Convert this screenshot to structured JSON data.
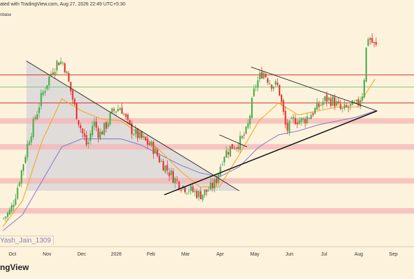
{
  "header": {
    "published": "ated with TradingView.com, Aug 27, 2026 22:49 UTC+5:30",
    "subtitle": "nbase"
  },
  "watermark": {
    "author": "Yash_Jain_1309",
    "logo": "ngView"
  },
  "colors": {
    "background": "#fdf3dc",
    "bull": "#4caf50",
    "bear": "#e53935",
    "ema_fast": "#f5a623",
    "ema_slow": "#8a7fd0",
    "support_zone": "#f4b6b6",
    "resistance_line": "#d32f2f",
    "green_line": "#7cc57c",
    "trendline": "#111111",
    "triangle_fill": "#c8c8d8"
  },
  "chart_data": {
    "type": "candlestick",
    "x_ticks": [
      "Oct",
      "Nov",
      "Dec",
      "2026",
      "Feb",
      "Mar",
      "Apr",
      "May",
      "Jun",
      "Jul",
      "Aug",
      "Sep"
    ],
    "close_path": [
      [
        0,
        0.06
      ],
      [
        0.02,
        0.1
      ],
      [
        0.035,
        0.2
      ],
      [
        0.05,
        0.32
      ],
      [
        0.065,
        0.45
      ],
      [
        0.08,
        0.55
      ],
      [
        0.1,
        0.68
      ],
      [
        0.12,
        0.78
      ],
      [
        0.14,
        0.85
      ],
      [
        0.155,
        0.84
      ],
      [
        0.17,
        0.72
      ],
      [
        0.185,
        0.6
      ],
      [
        0.2,
        0.5
      ],
      [
        0.215,
        0.42
      ],
      [
        0.23,
        0.55
      ],
      [
        0.245,
        0.48
      ],
      [
        0.26,
        0.52
      ],
      [
        0.28,
        0.6
      ],
      [
        0.3,
        0.62
      ],
      [
        0.32,
        0.52
      ],
      [
        0.34,
        0.48
      ],
      [
        0.36,
        0.45
      ],
      [
        0.38,
        0.42
      ],
      [
        0.4,
        0.35
      ],
      [
        0.42,
        0.3
      ],
      [
        0.44,
        0.25
      ],
      [
        0.46,
        0.22
      ],
      [
        0.48,
        0.2
      ],
      [
        0.5,
        0.18
      ],
      [
        0.52,
        0.2
      ],
      [
        0.54,
        0.24
      ],
      [
        0.56,
        0.38
      ],
      [
        0.58,
        0.42
      ],
      [
        0.6,
        0.44
      ],
      [
        0.62,
        0.5
      ],
      [
        0.64,
        0.72
      ],
      [
        0.66,
        0.8
      ],
      [
        0.68,
        0.74
      ],
      [
        0.7,
        0.72
      ],
      [
        0.72,
        0.5
      ],
      [
        0.74,
        0.56
      ],
      [
        0.76,
        0.55
      ],
      [
        0.78,
        0.58
      ],
      [
        0.8,
        0.62
      ],
      [
        0.82,
        0.66
      ],
      [
        0.84,
        0.65
      ],
      [
        0.86,
        0.6
      ],
      [
        0.88,
        0.62
      ],
      [
        0.9,
        0.63
      ],
      [
        0.915,
        0.7
      ],
      [
        0.925,
        0.98
      ],
      [
        0.935,
        0.95
      ],
      [
        0.945,
        0.92
      ]
    ],
    "ema_fast_path": [
      [
        0,
        0.02
      ],
      [
        0.05,
        0.15
      ],
      [
        0.1,
        0.45
      ],
      [
        0.15,
        0.66
      ],
      [
        0.2,
        0.6
      ],
      [
        0.25,
        0.56
      ],
      [
        0.3,
        0.55
      ],
      [
        0.35,
        0.48
      ],
      [
        0.4,
        0.4
      ],
      [
        0.45,
        0.3
      ],
      [
        0.5,
        0.22
      ],
      [
        0.55,
        0.22
      ],
      [
        0.6,
        0.38
      ],
      [
        0.65,
        0.55
      ],
      [
        0.7,
        0.64
      ],
      [
        0.75,
        0.58
      ],
      [
        0.8,
        0.6
      ],
      [
        0.85,
        0.62
      ],
      [
        0.9,
        0.62
      ],
      [
        0.945,
        0.76
      ]
    ],
    "ema_slow_path": [
      [
        0,
        0.0
      ],
      [
        0.05,
        0.08
      ],
      [
        0.1,
        0.25
      ],
      [
        0.15,
        0.42
      ],
      [
        0.2,
        0.46
      ],
      [
        0.25,
        0.46
      ],
      [
        0.3,
        0.46
      ],
      [
        0.35,
        0.43
      ],
      [
        0.4,
        0.38
      ],
      [
        0.45,
        0.33
      ],
      [
        0.5,
        0.29
      ],
      [
        0.55,
        0.27
      ],
      [
        0.6,
        0.32
      ],
      [
        0.65,
        0.42
      ],
      [
        0.7,
        0.48
      ],
      [
        0.75,
        0.5
      ],
      [
        0.8,
        0.53
      ],
      [
        0.85,
        0.55
      ],
      [
        0.9,
        0.57
      ],
      [
        0.945,
        0.6
      ]
    ],
    "horizontal_levels": [
      {
        "name": "resistance-high",
        "value": 0.78,
        "style": "line"
      },
      {
        "name": "green-level",
        "value": 0.72,
        "style": "green"
      },
      {
        "name": "resistance-mid",
        "value": 0.64,
        "style": "line"
      },
      {
        "name": "zone-upper",
        "value": 0.55,
        "style": "zone"
      },
      {
        "name": "zone-mid",
        "value": 0.42,
        "style": "zone"
      },
      {
        "name": "zone-low",
        "value": 0.25,
        "style": "zone"
      },
      {
        "name": "zone-bottom",
        "value": 0.1,
        "style": "zone"
      }
    ],
    "trendlines": [
      {
        "name": "descending-triangle-top",
        "from": [
          0.06,
          0.85
        ],
        "to": [
          0.6,
          0.2
        ]
      },
      {
        "name": "ascending-support",
        "from": [
          0.41,
          0.18
        ],
        "to": [
          0.95,
          0.6
        ]
      },
      {
        "name": "symmetrical-triangle-top",
        "from": [
          0.63,
          0.82
        ],
        "to": [
          0.95,
          0.6
        ]
      },
      {
        "name": "flag-top",
        "from": [
          0.55,
          0.48
        ],
        "to": [
          0.62,
          0.42
        ]
      }
    ],
    "shaded_triangle": [
      [
        0.06,
        0.85
      ],
      [
        0.06,
        0.2
      ],
      [
        0.6,
        0.2
      ]
    ]
  }
}
